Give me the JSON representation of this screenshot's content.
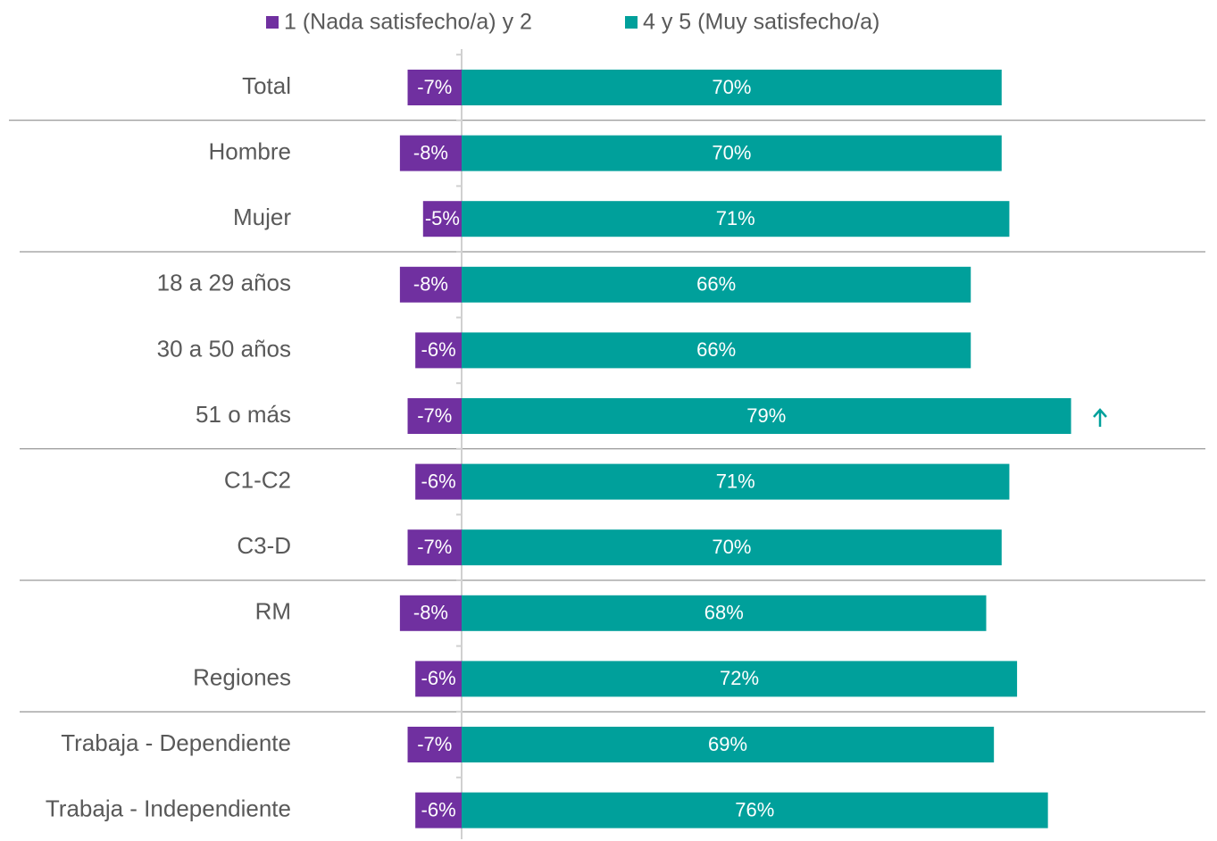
{
  "chart_data": {
    "type": "diverging-bar",
    "categories": [
      "Total",
      "Hombre",
      "Mujer",
      "18 a 29 años",
      "30 a 50 años",
      "51 o más",
      "C1-C2",
      "C3-D",
      "RM",
      "Regiones",
      "Trabaja - Dependiente",
      "Trabaja - Independiente"
    ],
    "series": [
      {
        "name": "1 (Nada satisfecho/a) y 2",
        "color": "#7030a0",
        "values": [
          -7,
          -8,
          -5,
          -8,
          -6,
          -7,
          -6,
          -7,
          -8,
          -6,
          -7,
          -6
        ],
        "value_labels": [
          "-7%",
          "-8%",
          "-5%",
          "-8%",
          "-6%",
          "-7%",
          "-6%",
          "-7%",
          "-8%",
          "-6%",
          "-7%",
          "-6%"
        ]
      },
      {
        "name": "4 y 5 (Muy satisfecho/a)",
        "color": "#00a09b",
        "values": [
          70,
          70,
          71,
          66,
          66,
          79,
          71,
          70,
          68,
          72,
          69,
          76
        ],
        "value_labels": [
          "70%",
          "70%",
          "71%",
          "66%",
          "66%",
          "79%",
          "71%",
          "70%",
          "68%",
          "72%",
          "69%",
          "76%"
        ]
      }
    ]
  }
}
